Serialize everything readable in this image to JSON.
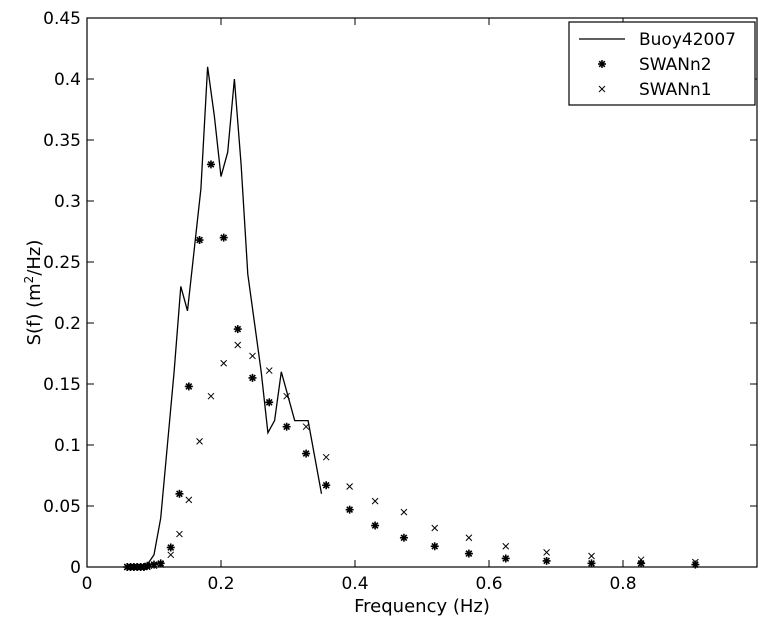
{
  "chart_data": {
    "type": "line",
    "title": "",
    "xlabel": "Frequency (Hz)",
    "ylabel_parts": {
      "before": "S(f) (m",
      "sup": "2",
      "after": "/Hz)"
    },
    "xlim": [
      0,
      1.0
    ],
    "ylim": [
      0,
      0.45
    ],
    "xticks": [
      0,
      0.2,
      0.4,
      0.6,
      0.8
    ],
    "xtick_labels": [
      "0",
      "0.2",
      "0.4",
      "0.6",
      "0.8"
    ],
    "yticks": [
      0,
      0.05,
      0.1,
      0.15,
      0.2,
      0.25,
      0.3,
      0.35,
      0.4,
      0.45
    ],
    "ytick_labels": [
      "0",
      "0.05",
      "0.1",
      "0.15",
      "0.2",
      "0.25",
      "0.3",
      "0.35",
      "0.4",
      "0.45"
    ],
    "grid": false,
    "legend_position": "top-right",
    "series": [
      {
        "name": "Buoy42007",
        "style": "line",
        "color": "#000000",
        "x": [
          0.06,
          0.07,
          0.08,
          0.09,
          0.1,
          0.11,
          0.12,
          0.13,
          0.14,
          0.15,
          0.16,
          0.17,
          0.18,
          0.19,
          0.2,
          0.21,
          0.22,
          0.23,
          0.24,
          0.25,
          0.26,
          0.27,
          0.28,
          0.29,
          0.3,
          0.31,
          0.32,
          0.33,
          0.34,
          0.35
        ],
        "y": [
          0.0,
          0.0,
          0.0,
          0.002,
          0.01,
          0.04,
          0.1,
          0.16,
          0.23,
          0.21,
          0.26,
          0.31,
          0.41,
          0.37,
          0.32,
          0.34,
          0.4,
          0.33,
          0.24,
          0.2,
          0.16,
          0.11,
          0.12,
          0.16,
          0.14,
          0.12,
          0.12,
          0.12,
          0.09,
          0.06
        ]
      },
      {
        "name": "SWANn2",
        "style": "asterisk",
        "color": "#000000",
        "x": [
          0.06,
          0.065,
          0.07,
          0.075,
          0.08,
          0.085,
          0.09,
          0.1,
          0.11,
          0.125,
          0.138,
          0.152,
          0.168,
          0.185,
          0.204,
          0.225,
          0.247,
          0.272,
          0.298,
          0.327,
          0.357,
          0.392,
          0.43,
          0.473,
          0.519,
          0.57,
          0.625,
          0.686,
          0.753,
          0.827,
          0.908
        ],
        "y": [
          0.0,
          0.0,
          0.0,
          0.0,
          0.0,
          0.0,
          0.001,
          0.002,
          0.003,
          0.016,
          0.06,
          0.148,
          0.268,
          0.33,
          0.27,
          0.195,
          0.155,
          0.135,
          0.115,
          0.093,
          0.067,
          0.047,
          0.034,
          0.024,
          0.017,
          0.011,
          0.007,
          0.005,
          0.003,
          0.003,
          0.002
        ]
      },
      {
        "name": "SWANn1",
        "style": "cross",
        "color": "#000000",
        "x": [
          0.06,
          0.065,
          0.07,
          0.075,
          0.08,
          0.085,
          0.09,
          0.1,
          0.11,
          0.125,
          0.138,
          0.152,
          0.168,
          0.185,
          0.204,
          0.225,
          0.247,
          0.272,
          0.298,
          0.327,
          0.357,
          0.392,
          0.43,
          0.473,
          0.519,
          0.57,
          0.625,
          0.686,
          0.753,
          0.827,
          0.908
        ],
        "y": [
          0.0,
          0.0,
          0.0,
          0.0,
          0.0,
          0.0,
          0.0,
          0.001,
          0.002,
          0.01,
          0.027,
          0.055,
          0.103,
          0.14,
          0.167,
          0.182,
          0.173,
          0.161,
          0.14,
          0.115,
          0.09,
          0.066,
          0.054,
          0.045,
          0.032,
          0.024,
          0.017,
          0.012,
          0.009,
          0.006,
          0.004
        ]
      }
    ]
  }
}
